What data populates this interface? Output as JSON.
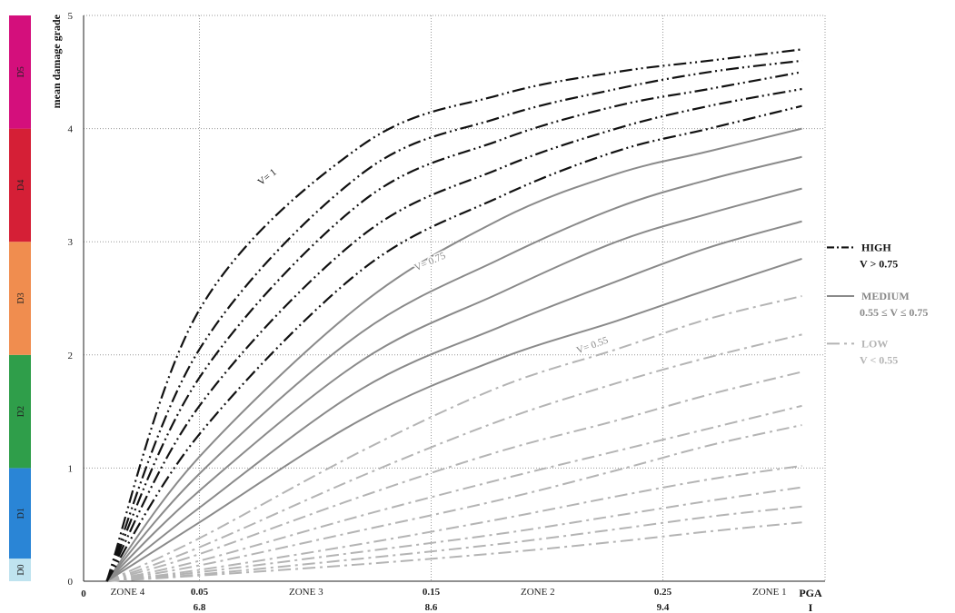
{
  "chart_data": {
    "type": "line",
    "ylabel": "mean damage grade",
    "xlabel": "PGA",
    "xlabel2": "I",
    "ylim": [
      0,
      5
    ],
    "xlim": [
      0,
      0.32
    ],
    "origin_label": "0",
    "y_ticks": [
      "0",
      "1",
      "2",
      "3",
      "4",
      "5"
    ],
    "y_tick_values": [
      0,
      1,
      2,
      3,
      4,
      5
    ],
    "x_ticks_pga": [
      {
        "value": 0.05,
        "label": "0.05",
        "label2": "6.8"
      },
      {
        "value": 0.15,
        "label": "0.15",
        "label2": "8.6"
      },
      {
        "value": 0.25,
        "label": "0.25",
        "label2": "9.4"
      }
    ],
    "zones": [
      {
        "label": "ZONE 4",
        "center": 0.019
      },
      {
        "label": "ZONE 3",
        "center": 0.096
      },
      {
        "label": "ZONE 2",
        "center": 0.196
      },
      {
        "label": "ZONE 1",
        "center": 0.296
      }
    ],
    "damage_bands": [
      {
        "label": "D0",
        "from": 0,
        "to": 0.2,
        "color": "#bfe3ef"
      },
      {
        "label": "D1",
        "from": 0.2,
        "to": 1,
        "color": "#2a85d6"
      },
      {
        "label": "D2",
        "from": 1,
        "to": 2,
        "color": "#2f9e4a"
      },
      {
        "label": "D3",
        "from": 2,
        "to": 3,
        "color": "#f08d4f"
      },
      {
        "label": "D4",
        "from": 3,
        "to": 4,
        "color": "#d51f36"
      },
      {
        "label": "D5",
        "from": 4,
        "to": 5,
        "color": "#d40f7c"
      }
    ],
    "x_start": 0.01,
    "series": [
      {
        "class": "high",
        "y": [
          0,
          2.4,
          3.85,
          4.3,
          4.5,
          4.6,
          4.7
        ]
      },
      {
        "class": "high",
        "y": [
          0,
          2.05,
          3.6,
          4.1,
          4.35,
          4.5,
          4.6
        ]
      },
      {
        "class": "high",
        "y": [
          0,
          1.8,
          3.35,
          3.9,
          4.2,
          4.35,
          4.5
        ]
      },
      {
        "class": "high",
        "y": [
          0,
          1.55,
          3.05,
          3.65,
          4.0,
          4.2,
          4.35
        ]
      },
      {
        "class": "high",
        "y": [
          0,
          1.3,
          2.75,
          3.4,
          3.8,
          4.0,
          4.2
        ]
      },
      {
        "class": "medium",
        "y": [
          0,
          1.1,
          2.45,
          3.2,
          3.6,
          3.8,
          4.0
        ]
      },
      {
        "class": "medium",
        "y": [
          0,
          0.95,
          2.2,
          2.85,
          3.3,
          3.55,
          3.75
        ]
      },
      {
        "class": "medium",
        "y": [
          0,
          0.8,
          1.95,
          2.55,
          3.0,
          3.25,
          3.47
        ]
      },
      {
        "class": "medium",
        "y": [
          0,
          0.65,
          1.7,
          2.25,
          2.65,
          2.95,
          3.18
        ]
      },
      {
        "class": "medium",
        "y": [
          0,
          0.52,
          1.43,
          1.97,
          2.3,
          2.58,
          2.85
        ]
      },
      {
        "class": "low",
        "y": [
          0,
          0.38,
          1.15,
          1.72,
          2.05,
          2.32,
          2.52
        ]
      },
      {
        "class": "low",
        "y": [
          0,
          0.3,
          0.93,
          1.42,
          1.75,
          1.98,
          2.18
        ]
      },
      {
        "class": "low",
        "y": [
          0,
          0.24,
          0.75,
          1.15,
          1.42,
          1.65,
          1.85
        ]
      },
      {
        "class": "low",
        "y": [
          0,
          0.18,
          0.58,
          0.9,
          1.15,
          1.35,
          1.55
        ]
      },
      {
        "class": "low",
        "y": [
          0,
          0.14,
          0.45,
          0.72,
          0.98,
          1.2,
          1.38
        ]
      },
      {
        "class": "low",
        "y": [
          0,
          0.1,
          0.33,
          0.55,
          0.75,
          0.9,
          1.02
        ]
      },
      {
        "class": "low",
        "y": [
          0,
          0.08,
          0.26,
          0.42,
          0.58,
          0.71,
          0.83
        ]
      },
      {
        "class": "low",
        "y": [
          0,
          0.06,
          0.2,
          0.33,
          0.46,
          0.57,
          0.66
        ]
      },
      {
        "class": "low",
        "y": [
          0,
          0.05,
          0.15,
          0.25,
          0.35,
          0.44,
          0.52
        ]
      }
    ],
    "series_x": [
      0.01,
      0.05,
      0.12,
      0.18,
      0.23,
      0.27,
      0.31
    ],
    "curve_labels": [
      {
        "text": "V= 1",
        "x": 0.08,
        "y": 3.55,
        "angle": -38,
        "color": "#111111"
      },
      {
        "text": "V= 0.75",
        "x": 0.15,
        "y": 2.8,
        "angle": -24,
        "color": "#888888"
      },
      {
        "text": "V= 0.55",
        "x": 0.22,
        "y": 2.06,
        "angle": -20,
        "color": "#888888"
      }
    ],
    "legend": [
      {
        "class": "high",
        "title": "HIGH",
        "sub": "V > 0.75",
        "color": "#111111",
        "y": 2.95
      },
      {
        "class": "medium",
        "title": "MEDIUM",
        "sub": "0.55 ≤ V ≤ 0.75",
        "color": "#888888",
        "y": 2.52
      },
      {
        "class": "low",
        "title": "LOW",
        "sub": "V < 0.55",
        "color": "#b4b4b4",
        "y": 2.1
      }
    ],
    "styles": {
      "high": {
        "color": "#111111",
        "dash": "14,4,2,4,2,4",
        "width": 2.2
      },
      "medium": {
        "color": "#8a8a8a",
        "dash": "",
        "width": 2
      },
      "low": {
        "color": "#b4b4b4",
        "dash": "14,5,3,5",
        "width": 2
      }
    }
  }
}
